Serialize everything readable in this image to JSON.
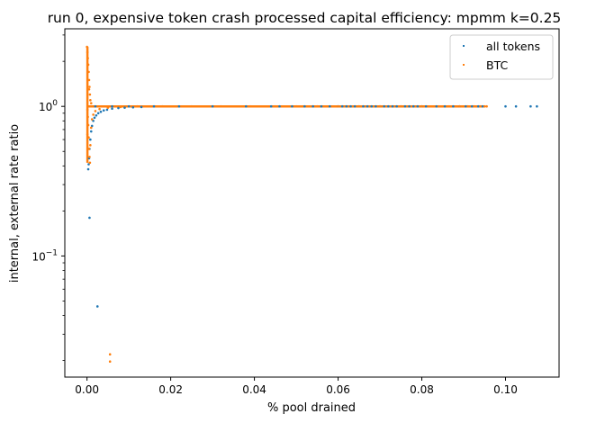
{
  "chart_data": {
    "type": "scatter",
    "title": "run 0, expensive token crash processed capital efficiency: mpmm k=0.25",
    "xlabel": "% pool drained",
    "ylabel": "internal, external rate ratio",
    "xlim": [
      -0.0053,
      0.1128
    ],
    "ylim": [
      0.0155,
      3.3
    ],
    "yscale": "log",
    "xticks": [
      {
        "value": 0.0,
        "label": "0.00"
      },
      {
        "value": 0.02,
        "label": "0.02"
      },
      {
        "value": 0.04,
        "label": "0.04"
      },
      {
        "value": 0.06,
        "label": "0.06"
      },
      {
        "value": 0.08,
        "label": "0.08"
      },
      {
        "value": 0.1,
        "label": "0.10"
      }
    ],
    "yticks": [
      {
        "value": 0.1,
        "base": "10",
        "exp": "−1"
      },
      {
        "value": 1,
        "base": "10",
        "exp": "0"
      }
    ],
    "grid": false,
    "legend": {
      "position": "top-right"
    },
    "series": [
      {
        "name": "all tokens",
        "color": "#1f77b4",
        "points": [
          [
            0.0003,
            0.38
          ],
          [
            0.0004,
            0.41
          ],
          [
            0.0005,
            0.45
          ],
          [
            0.0006,
            0.52
          ],
          [
            0.0008,
            0.6
          ],
          [
            0.001,
            0.68
          ],
          [
            0.0012,
            0.74
          ],
          [
            0.0015,
            0.8
          ],
          [
            0.0018,
            0.84
          ],
          [
            0.0022,
            0.87
          ],
          [
            0.0027,
            0.9
          ],
          [
            0.0033,
            0.92
          ],
          [
            0.004,
            0.94
          ],
          [
            0.0048,
            0.95
          ],
          [
            0.006,
            0.965
          ],
          [
            0.0075,
            0.975
          ],
          [
            0.009,
            0.98
          ],
          [
            0.011,
            0.985
          ],
          [
            0.013,
            0.99
          ],
          [
            0.0006,
            0.18
          ],
          [
            0.0025,
            0.046
          ],
          [
            0.002,
            1.0
          ],
          [
            0.006,
            1.0
          ],
          [
            0.01,
            1.0
          ],
          [
            0.016,
            1.0
          ],
          [
            0.022,
            1.0
          ],
          [
            0.03,
            1.0
          ],
          [
            0.038,
            1.0
          ],
          [
            0.044,
            1.0
          ],
          [
            0.046,
            1.0
          ],
          [
            0.049,
            1.0
          ],
          [
            0.052,
            1.0
          ],
          [
            0.054,
            1.0
          ],
          [
            0.056,
            1.0
          ],
          [
            0.058,
            1.0
          ],
          [
            0.06,
            1.0
          ],
          [
            0.061,
            1.0
          ],
          [
            0.062,
            1.0
          ],
          [
            0.063,
            1.0
          ],
          [
            0.064,
            1.0
          ],
          [
            0.065,
            1.0
          ],
          [
            0.066,
            1.0
          ],
          [
            0.067,
            1.0
          ],
          [
            0.068,
            1.0
          ],
          [
            0.069,
            1.0
          ],
          [
            0.07,
            1.0
          ],
          [
            0.071,
            1.0
          ],
          [
            0.072,
            1.0
          ],
          [
            0.073,
            1.0
          ],
          [
            0.074,
            1.0
          ],
          [
            0.075,
            1.0
          ],
          [
            0.076,
            1.0
          ],
          [
            0.077,
            1.0
          ],
          [
            0.078,
            1.0
          ],
          [
            0.079,
            1.0
          ],
          [
            0.08,
            1.0
          ],
          [
            0.081,
            1.0
          ],
          [
            0.0835,
            1.0
          ],
          [
            0.0855,
            1.0
          ],
          [
            0.0875,
            1.0
          ],
          [
            0.089,
            1.0
          ],
          [
            0.0905,
            1.0
          ],
          [
            0.092,
            1.0
          ],
          [
            0.0935,
            1.0
          ],
          [
            0.0945,
            1.0
          ],
          [
            0.1,
            1.0
          ],
          [
            0.1025,
            1.0
          ],
          [
            0.106,
            1.0
          ],
          [
            0.1075,
            1.0
          ]
        ]
      },
      {
        "name": "BTC",
        "color": "#ff7f0e",
        "points": [
          [
            0.0,
            2.5
          ],
          [
            0.0001,
            2.3
          ],
          [
            0.0002,
            2.1
          ],
          [
            0.0003,
            1.9
          ],
          [
            0.0004,
            1.7
          ],
          [
            0.0005,
            1.5
          ],
          [
            0.0006,
            1.35
          ],
          [
            0.0007,
            1.2
          ],
          [
            0.0008,
            1.1
          ],
          [
            0.001,
            1.05
          ],
          [
            0.0001,
            0.95
          ],
          [
            0.0002,
            0.85
          ],
          [
            0.0003,
            0.75
          ],
          [
            0.0004,
            0.62
          ],
          [
            0.0005,
            0.52
          ],
          [
            0.0006,
            0.46
          ],
          [
            0.0007,
            0.42
          ],
          [
            0.0008,
            0.55
          ],
          [
            0.001,
            0.72
          ],
          [
            0.0012,
            0.82
          ],
          [
            0.0015,
            0.88
          ],
          [
            0.002,
            0.93
          ],
          [
            0.003,
            0.96
          ],
          [
            0.005,
            0.98
          ],
          [
            0.008,
            0.99
          ],
          [
            0.012,
            1.0
          ],
          [
            0.018,
            1.0
          ],
          [
            0.025,
            1.0
          ],
          [
            0.032,
            1.0
          ],
          [
            0.039,
            1.0
          ],
          [
            0.045,
            1.0
          ],
          [
            0.05,
            1.0
          ],
          [
            0.055,
            1.0
          ],
          [
            0.06,
            1.0
          ],
          [
            0.065,
            1.0
          ],
          [
            0.07,
            1.0
          ],
          [
            0.075,
            1.0
          ],
          [
            0.08,
            1.0
          ],
          [
            0.084,
            1.0
          ],
          [
            0.0865,
            1.0
          ],
          [
            0.089,
            1.0
          ],
          [
            0.091,
            1.0
          ],
          [
            0.0925,
            1.0
          ],
          [
            0.094,
            1.0
          ],
          [
            0.095,
            1.0
          ],
          [
            0.0955,
            1.0
          ],
          [
            0.0005,
            1.3
          ],
          [
            0.0001,
            0.65
          ],
          [
            0.0055,
            0.022
          ],
          [
            0.0055,
            0.0197
          ]
        ]
      }
    ]
  }
}
